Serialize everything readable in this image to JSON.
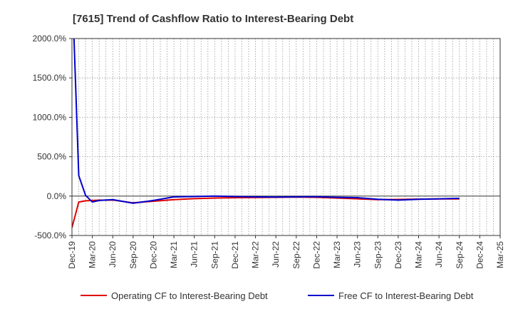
{
  "chart_data": {
    "type": "line",
    "title": "[7615]  Trend of Cashflow Ratio to Interest-Bearing Debt",
    "xlabel": "",
    "ylabel": "",
    "x_ticks": [
      "Dec-19",
      "Mar-20",
      "Jun-20",
      "Sep-20",
      "Dec-20",
      "Mar-21",
      "Jun-21",
      "Sep-21",
      "Dec-21",
      "Mar-22",
      "Jun-22",
      "Sep-22",
      "Dec-22",
      "Mar-23",
      "Jun-23",
      "Sep-23",
      "Dec-23",
      "Mar-24",
      "Jun-24",
      "Sep-24",
      "Dec-24",
      "Mar-25"
    ],
    "y_ticks": [
      "-500.0%",
      "0.0%",
      "500.0%",
      "1000.0%",
      "1500.0%",
      "2000.0%"
    ],
    "y_tick_values": [
      -500,
      0,
      500,
      1000,
      1500,
      2000
    ],
    "ylim": [
      -500,
      2000
    ],
    "xlim_months": [
      0,
      63
    ],
    "grid": true,
    "legend_position": "bottom",
    "series": [
      {
        "name": "Operating CF to Interest-Bearing Debt",
        "color": "#e00000",
        "points": [
          {
            "m": 0,
            "v": -400
          },
          {
            "m": 1,
            "v": -75
          },
          {
            "m": 2,
            "v": -60
          },
          {
            "m": 3,
            "v": -55
          },
          {
            "m": 4,
            "v": -52
          },
          {
            "m": 6,
            "v": -50
          },
          {
            "m": 9,
            "v": -85
          },
          {
            "m": 12,
            "v": -65
          },
          {
            "m": 15,
            "v": -45
          },
          {
            "m": 18,
            "v": -32
          },
          {
            "m": 21,
            "v": -25
          },
          {
            "m": 24,
            "v": -20
          },
          {
            "m": 27,
            "v": -18
          },
          {
            "m": 30,
            "v": -15
          },
          {
            "m": 33,
            "v": -12
          },
          {
            "m": 36,
            "v": -15
          },
          {
            "m": 39,
            "v": -25
          },
          {
            "m": 42,
            "v": -35
          },
          {
            "m": 45,
            "v": -45
          },
          {
            "m": 48,
            "v": -42
          },
          {
            "m": 51,
            "v": -38
          },
          {
            "m": 54,
            "v": -36
          },
          {
            "m": 57,
            "v": -36
          }
        ]
      },
      {
        "name": "Free CF to Interest-Bearing Debt",
        "color": "#0000cc",
        "points": [
          {
            "m": 0.3,
            "v": 2000
          },
          {
            "m": 1,
            "v": 260
          },
          {
            "m": 2,
            "v": 10
          },
          {
            "m": 3,
            "v": -75
          },
          {
            "m": 4,
            "v": -55
          },
          {
            "m": 6,
            "v": -45
          },
          {
            "m": 9,
            "v": -90
          },
          {
            "m": 12,
            "v": -55
          },
          {
            "m": 15,
            "v": -10
          },
          {
            "m": 18,
            "v": -5
          },
          {
            "m": 21,
            "v": 0
          },
          {
            "m": 24,
            "v": -5
          },
          {
            "m": 27,
            "v": -10
          },
          {
            "m": 30,
            "v": -12
          },
          {
            "m": 33,
            "v": -10
          },
          {
            "m": 36,
            "v": -8
          },
          {
            "m": 39,
            "v": -15
          },
          {
            "m": 42,
            "v": -20
          },
          {
            "m": 45,
            "v": -40
          },
          {
            "m": 48,
            "v": -50
          },
          {
            "m": 51,
            "v": -40
          },
          {
            "m": 54,
            "v": -35
          },
          {
            "m": 57,
            "v": -28
          }
        ]
      }
    ]
  }
}
